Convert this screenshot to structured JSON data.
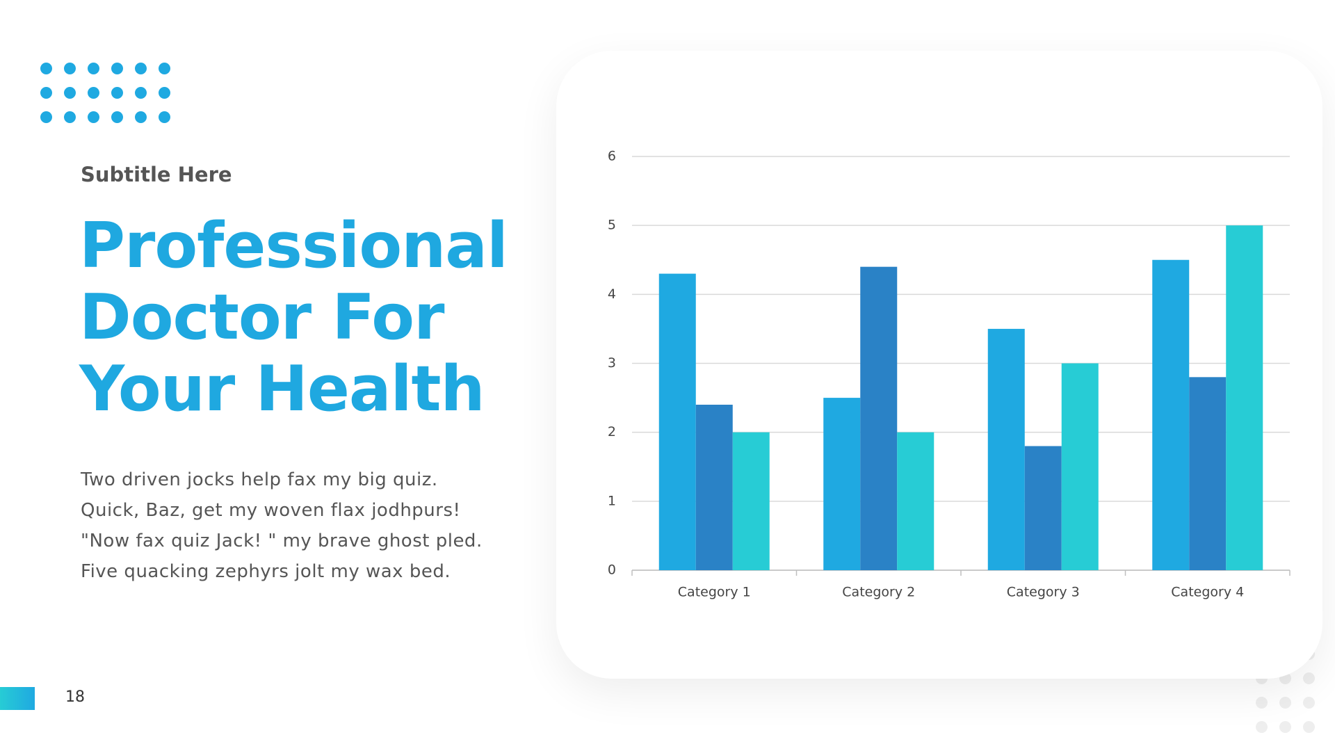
{
  "slide": {
    "subtitle": "Subtitle Here",
    "title_lines": [
      "Professional",
      "Doctor For",
      "Your Health"
    ],
    "body_lines": [
      "Two driven jocks help fax my big quiz.",
      "Quick, Baz, get my woven flax jodhpurs!",
      "\"Now fax quiz Jack! \" my brave ghost pled.",
      "Five quacking zephyrs jolt my wax bed."
    ],
    "page_number": "18"
  },
  "chart_data": {
    "type": "bar",
    "categories": [
      "Category 1",
      "Category 2",
      "Category 3",
      "Category 4"
    ],
    "series": [
      {
        "color": "#1fa9e1",
        "values": [
          4.3,
          2.5,
          3.5,
          4.5
        ]
      },
      {
        "color": "#2a82c6",
        "values": [
          2.4,
          4.4,
          1.8,
          2.8
        ]
      },
      {
        "color": "#27ccd5",
        "values": [
          2,
          2,
          3,
          5
        ]
      }
    ],
    "ylim": [
      0,
      6
    ],
    "yticks": [
      0,
      1,
      2,
      3,
      4,
      5,
      6
    ],
    "grid": true
  }
}
